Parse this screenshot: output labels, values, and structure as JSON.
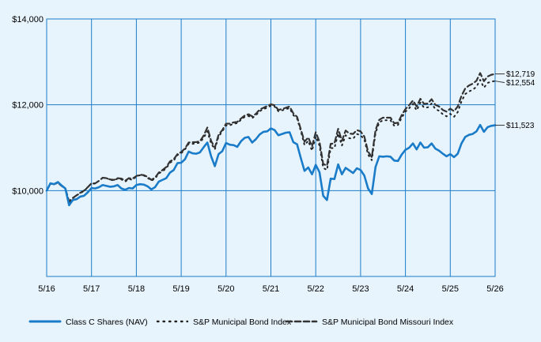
{
  "chart_data": {
    "type": "line",
    "title": "",
    "xlabel": "",
    "ylabel": "",
    "ylim": [
      8000,
      14000
    ],
    "y_ticks": [
      "$10,000",
      "$12,000",
      "$14,000"
    ],
    "x_tick_labels": [
      "5/16",
      "5/17",
      "5/18",
      "5/19",
      "5/20",
      "5/21",
      "5/22",
      "5/23",
      "5/24",
      "5/25",
      "5/26"
    ],
    "x_start": 2016.333,
    "grid": true,
    "legend_position": "bottom",
    "end_labels": [
      "$12,719",
      "$12,554",
      "$11,523"
    ],
    "series": [
      {
        "name": "Class C Shares (NAV)",
        "color": "#1a7cc9",
        "style": "solid",
        "values": [
          10000,
          10170,
          10150,
          10200,
          10120,
          10050,
          9660,
          9780,
          9800,
          9860,
          9880,
          9960,
          10060,
          10050,
          10080,
          10130,
          10110,
          10090,
          10100,
          10130,
          10050,
          10020,
          10060,
          10050,
          10130,
          10150,
          10140,
          10100,
          10030,
          10080,
          10210,
          10250,
          10290,
          10420,
          10480,
          10640,
          10650,
          10730,
          10910,
          10870,
          10860,
          10890,
          11010,
          11120,
          10800,
          10570,
          10850,
          10920,
          11110,
          11070,
          11060,
          11020,
          11150,
          11230,
          11250,
          11120,
          11200,
          11310,
          11370,
          11380,
          11450,
          11410,
          11290,
          11320,
          11350,
          11360,
          11130,
          11080,
          10760,
          10460,
          10540,
          10380,
          10600,
          10430,
          9880,
          9780,
          10280,
          10270,
          10610,
          10380,
          10530,
          10470,
          10410,
          10520,
          10480,
          10350,
          10050,
          9920,
          10550,
          10800,
          10790,
          10800,
          10790,
          10700,
          10690,
          10840,
          10950,
          11000,
          11100,
          10960,
          11120,
          11000,
          11010,
          11100,
          10980,
          10930,
          10860,
          10800,
          10850,
          10780,
          10860,
          11100,
          11250,
          11300,
          11320,
          11380,
          11530,
          11370,
          11480,
          11510,
          11523
        ]
      },
      {
        "name": "S&P Municipal Bond Index",
        "color": "#222222",
        "style": "dotted",
        "values": [
          10000,
          10170,
          10150,
          10190,
          10110,
          10040,
          9720,
          9820,
          9890,
          9940,
          9990,
          10080,
          10170,
          10160,
          10230,
          10300,
          10290,
          10250,
          10240,
          10280,
          10260,
          10210,
          10270,
          10250,
          10330,
          10360,
          10350,
          10300,
          10230,
          10280,
          10400,
          10450,
          10520,
          10650,
          10700,
          10830,
          10870,
          10960,
          11090,
          11090,
          11100,
          11120,
          11230,
          11380,
          11100,
          10960,
          11260,
          11380,
          11520,
          11520,
          11560,
          11570,
          11650,
          11720,
          11740,
          11690,
          11760,
          11850,
          11900,
          11930,
          11980,
          11960,
          11850,
          11870,
          11900,
          11920,
          11760,
          11680,
          11390,
          11060,
          11160,
          10930,
          11260,
          11050,
          10530,
          10480,
          10990,
          10990,
          11330,
          11050,
          11290,
          11220,
          11210,
          11320,
          11290,
          11190,
          10840,
          10710,
          11340,
          11590,
          11640,
          11640,
          11640,
          11510,
          11530,
          11700,
          11840,
          11920,
          12020,
          11870,
          12050,
          11930,
          11940,
          12030,
          11900,
          11860,
          11780,
          11730,
          11790,
          11720,
          11830,
          12080,
          12250,
          12310,
          12350,
          12420,
          12580,
          12400,
          12510,
          12540,
          12554
        ]
      },
      {
        "name": "S&P Municipal Bond Missouri Index",
        "color": "#333333",
        "style": "dashed",
        "values": [
          10000,
          10160,
          10150,
          10180,
          10110,
          10050,
          9750,
          9830,
          9890,
          9950,
          10000,
          10080,
          10170,
          10170,
          10230,
          10300,
          10290,
          10260,
          10250,
          10290,
          10280,
          10230,
          10290,
          10280,
          10340,
          10370,
          10360,
          10320,
          10250,
          10300,
          10420,
          10480,
          10550,
          10680,
          10730,
          10850,
          10900,
          10980,
          11120,
          11130,
          11130,
          11150,
          11280,
          11470,
          11160,
          11000,
          11300,
          11410,
          11560,
          11560,
          11590,
          11600,
          11680,
          11750,
          11780,
          11730,
          11790,
          11890,
          11930,
          11970,
          12010,
          11990,
          11880,
          11900,
          11930,
          11960,
          11800,
          11720,
          11430,
          11140,
          11240,
          11030,
          11360,
          11140,
          10620,
          10580,
          11090,
          11100,
          11440,
          11160,
          11400,
          11330,
          11320,
          11410,
          11380,
          11260,
          10910,
          10780,
          11410,
          11650,
          11700,
          11700,
          11700,
          11570,
          11580,
          11760,
          11900,
          11990,
          12100,
          11960,
          12140,
          12020,
          12030,
          12130,
          12000,
          11960,
          11880,
          11840,
          11910,
          11850,
          11960,
          12210,
          12380,
          12450,
          12490,
          12560,
          12740,
          12550,
          12660,
          12700,
          12719
        ]
      }
    ]
  }
}
